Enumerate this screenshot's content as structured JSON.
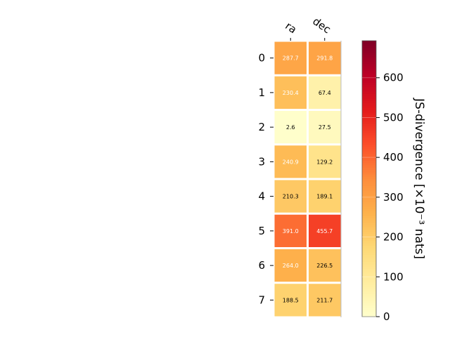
{
  "chart_data": {
    "type": "heatmap",
    "title": "",
    "x_categories": [
      "ra",
      "dec"
    ],
    "y_categories": [
      "0",
      "1",
      "2",
      "3",
      "4",
      "5",
      "6",
      "7"
    ],
    "values": [
      [
        287.7,
        291.8
      ],
      [
        230.4,
        67.4
      ],
      [
        2.6,
        27.5
      ],
      [
        240.9,
        129.2
      ],
      [
        210.3,
        189.1
      ],
      [
        391.0,
        455.7
      ],
      [
        264.0,
        226.5
      ],
      [
        188.5,
        211.7
      ]
    ],
    "value_labels": [
      [
        "287.7",
        "291.8"
      ],
      [
        "230.4",
        "67.4"
      ],
      [
        "2.6",
        "27.5"
      ],
      [
        "240.9",
        "129.2"
      ],
      [
        "210.3",
        "189.1"
      ],
      [
        "391.0",
        "455.7"
      ],
      [
        "264.0",
        "226.5"
      ],
      [
        "188.5",
        "211.7"
      ]
    ],
    "colormap": "YlOrRd",
    "colorbar": {
      "label": "JS-divergence [×10⁻³ nats]",
      "range": [
        0,
        693
      ],
      "ticks": [
        0,
        100,
        200,
        300,
        400,
        500,
        600
      ],
      "tick_labels": [
        "0",
        "100",
        "200",
        "300",
        "400",
        "500",
        "600"
      ]
    },
    "x_axis_position": "top",
    "grid": false
  }
}
